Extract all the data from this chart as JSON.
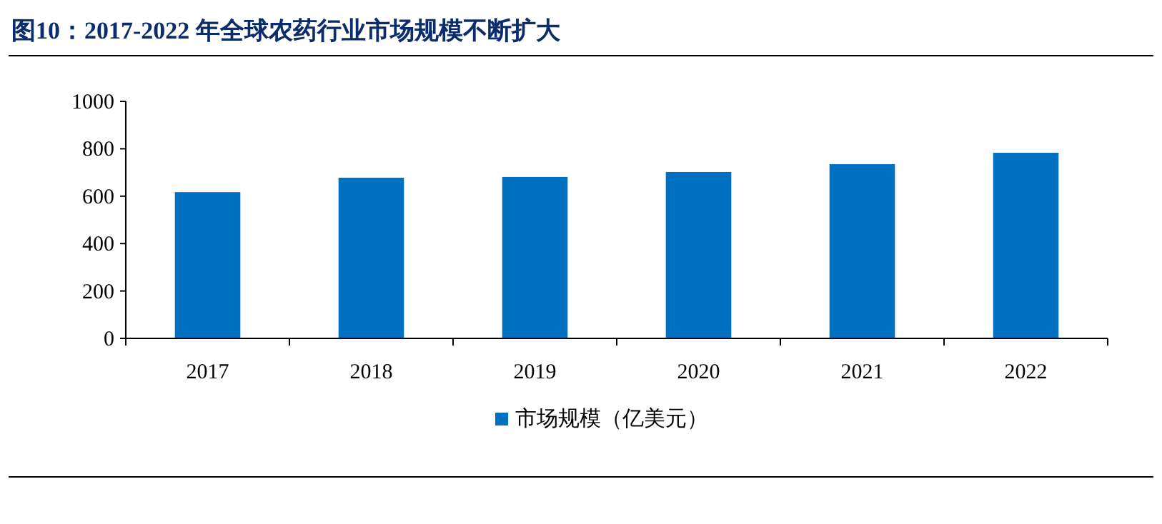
{
  "chart_data": {
    "type": "bar",
    "title": "图10：2017-2022 年全球农药行业市场规模不断扩大",
    "categories": [
      "2017",
      "2018",
      "2019",
      "2020",
      "2021",
      "2022"
    ],
    "series": [
      {
        "name": "市场规模（亿美元）",
        "color": "#0070c0",
        "values": [
          617,
          678,
          681,
          702,
          735,
          783
        ]
      }
    ],
    "ylim": [
      0,
      1000
    ],
    "yticks": [
      0,
      200,
      400,
      600,
      800,
      1000
    ],
    "grid": false,
    "legend": "bottom"
  }
}
